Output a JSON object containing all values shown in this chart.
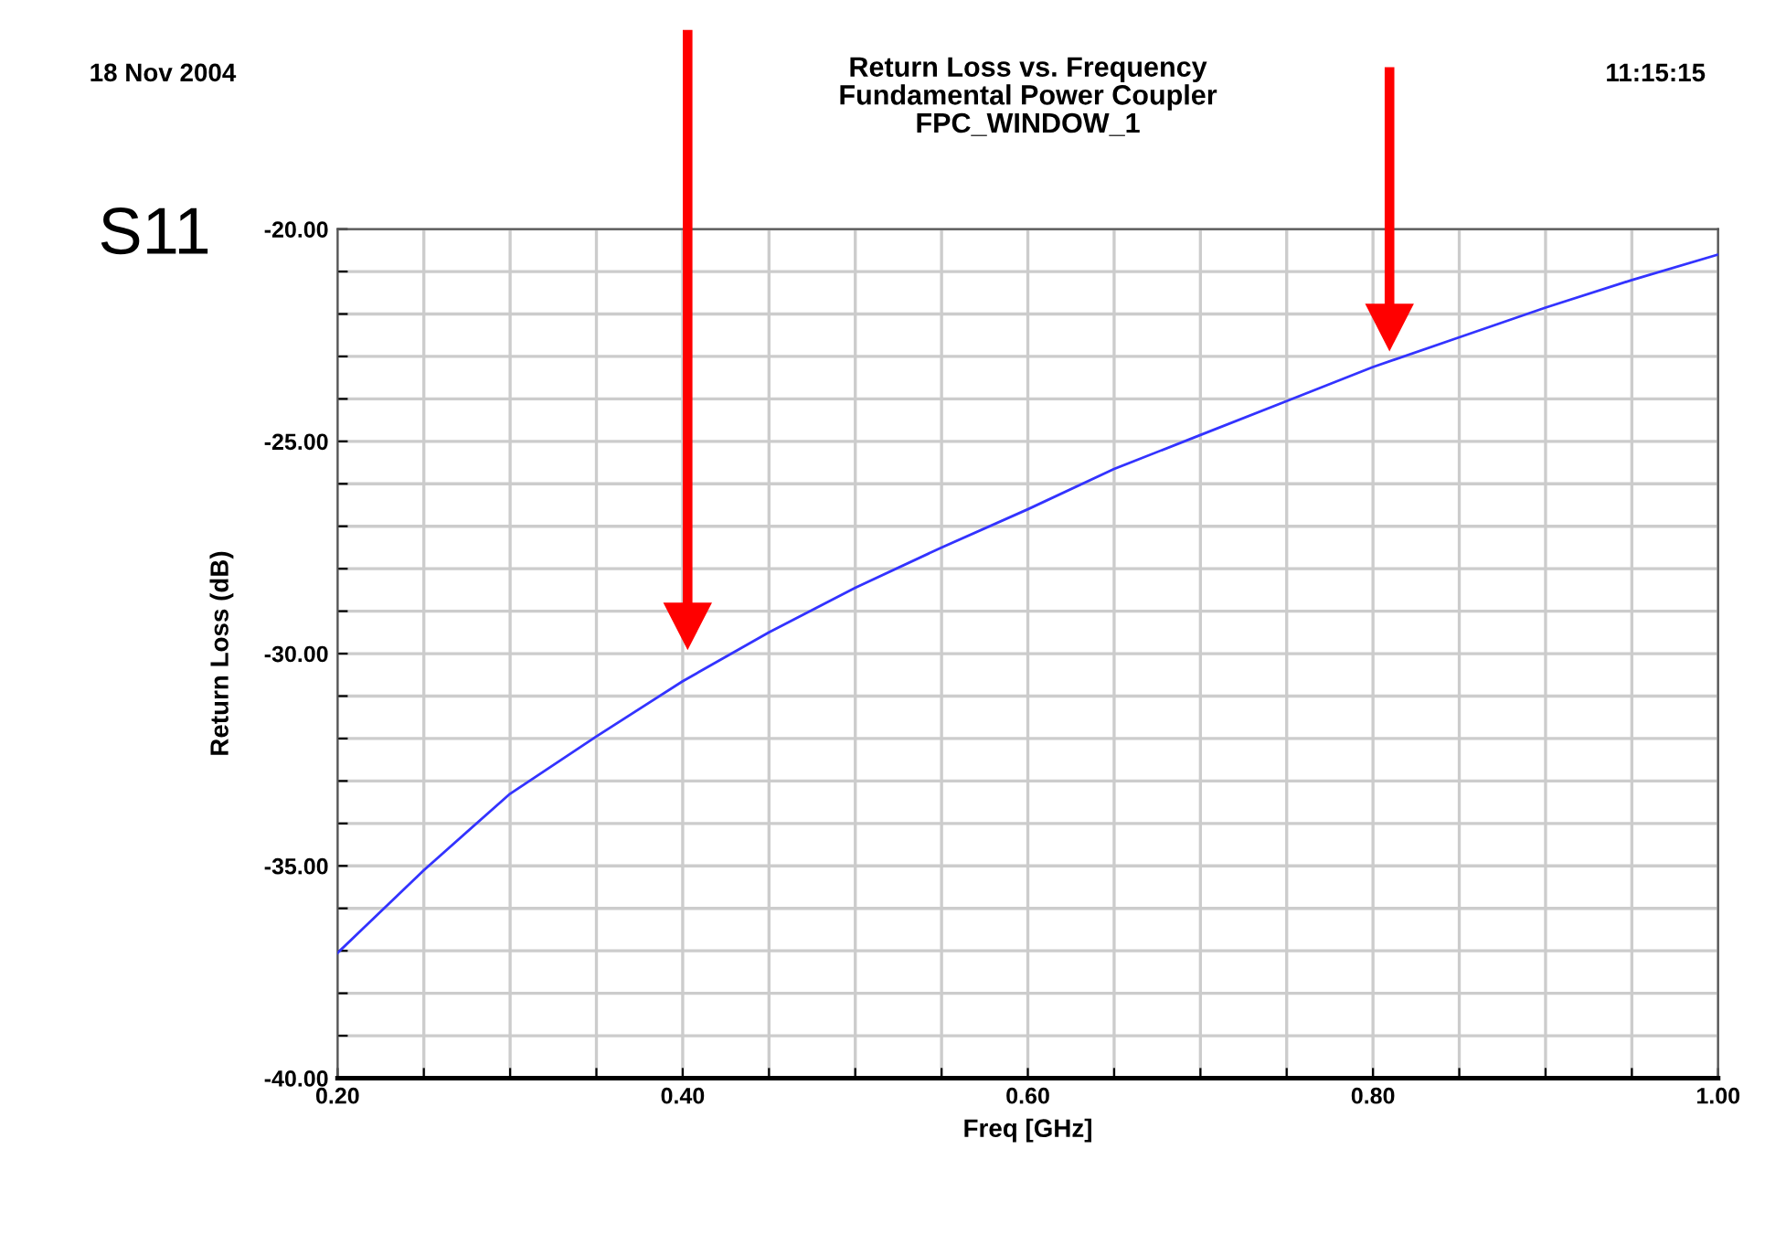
{
  "chart_data": {
    "type": "line",
    "title": "Return Loss vs. Frequency\nFundamental Power Coupler\nFPC_WINDOW_1",
    "xlabel": "Freq [GHz]",
    "ylabel": "Return Loss (dB)",
    "annotations": [
      "18 Nov 2004",
      "11:15:15",
      "S11"
    ],
    "x": [
      0.2,
      0.25,
      0.3,
      0.35,
      0.4,
      0.45,
      0.5,
      0.55,
      0.6,
      0.65,
      0.7,
      0.75,
      0.8,
      0.85,
      0.9,
      0.95,
      1.0
    ],
    "series": [
      {
        "color": "#3333ff",
        "values": [
          -37.05,
          -35.1,
          -33.3,
          -31.95,
          -30.65,
          -29.5,
          -28.45,
          -27.5,
          -26.6,
          -25.65,
          -24.85,
          -24.05,
          -23.25,
          -22.55,
          -21.85,
          -21.2,
          -20.6
        ]
      }
    ],
    "xlim": [
      0.2,
      1.0
    ],
    "ylim": [
      -40,
      -20
    ],
    "xticks": [
      {
        "value": 0.2,
        "label": "0.20"
      },
      {
        "value": 0.25,
        "label": null
      },
      {
        "value": 0.3,
        "label": null
      },
      {
        "value": 0.35,
        "label": null
      },
      {
        "value": 0.4,
        "label": "0.40"
      },
      {
        "value": 0.45,
        "label": null
      },
      {
        "value": 0.5,
        "label": null
      },
      {
        "value": 0.55,
        "label": null
      },
      {
        "value": 0.6,
        "label": "0.60"
      },
      {
        "value": 0.65,
        "label": null
      },
      {
        "value": 0.7,
        "label": null
      },
      {
        "value": 0.75,
        "label": null
      },
      {
        "value": 0.8,
        "label": "0.80"
      },
      {
        "value": 0.85,
        "label": null
      },
      {
        "value": 0.9,
        "label": null
      },
      {
        "value": 0.95,
        "label": null
      },
      {
        "value": 1.0,
        "label": "1.00"
      }
    ],
    "yticks": [
      {
        "value": -40,
        "label": "-40.00"
      },
      {
        "value": -39,
        "label": null
      },
      {
        "value": -38,
        "label": null
      },
      {
        "value": -37,
        "label": null
      },
      {
        "value": -36,
        "label": null
      },
      {
        "value": -35,
        "label": "-35.00"
      },
      {
        "value": -34,
        "label": null
      },
      {
        "value": -33,
        "label": null
      },
      {
        "value": -32,
        "label": null
      },
      {
        "value": -31,
        "label": null
      },
      {
        "value": -30,
        "label": "-30.00"
      },
      {
        "value": -29,
        "label": null
      },
      {
        "value": -28,
        "label": null
      },
      {
        "value": -27,
        "label": null
      },
      {
        "value": -26,
        "label": null
      },
      {
        "value": -25,
        "label": "-25.00"
      },
      {
        "value": -24,
        "label": null
      },
      {
        "value": -23,
        "label": null
      },
      {
        "value": -22,
        "label": null
      },
      {
        "value": -21,
        "label": null
      },
      {
        "value": -20,
        "label": "-20.00"
      }
    ],
    "grid": true,
    "legend": false,
    "marker": "none",
    "line_style": "solid"
  }
}
